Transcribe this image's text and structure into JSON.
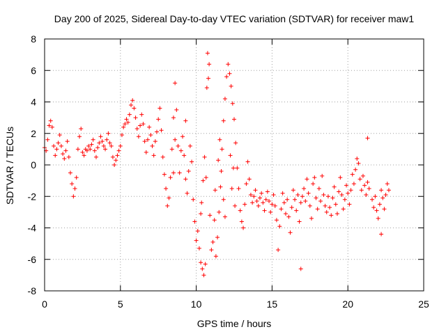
{
  "chart_data": {
    "type": "scatter",
    "title": "Day 200 of 2025, Sidereal Day-to-day VTEC variation (SDTVAR) for receiver maw1",
    "xlabel": "GPS time / hours",
    "ylabel": "SDTVAR / TECUs",
    "xlim": [
      0,
      25
    ],
    "ylim": [
      -8,
      8
    ],
    "xticks": [
      0,
      5,
      10,
      15,
      20,
      25
    ],
    "yticks": [
      -8,
      -6,
      -4,
      -2,
      0,
      2,
      4,
      6,
      8
    ],
    "grid": true,
    "marker": "+",
    "series": [
      {
        "name": "SDTVAR",
        "color": "#ff0000",
        "points": [
          [
            0.0,
            1.1
          ],
          [
            0.1,
            0.9
          ],
          [
            0.2,
            1.6
          ],
          [
            0.3,
            2.5
          ],
          [
            0.4,
            2.8
          ],
          [
            0.5,
            2.4
          ],
          [
            0.6,
            1.2
          ],
          [
            0.7,
            0.6
          ],
          [
            0.8,
            1.0
          ],
          [
            0.9,
            1.4
          ],
          [
            1.0,
            1.9
          ],
          [
            1.1,
            1.2
          ],
          [
            1.2,
            0.7
          ],
          [
            1.3,
            0.4
          ],
          [
            1.4,
            0.9
          ],
          [
            1.5,
            1.5
          ],
          [
            1.6,
            0.5
          ],
          [
            1.7,
            -0.5
          ],
          [
            1.8,
            -1.2
          ],
          [
            1.9,
            -2.0
          ],
          [
            2.0,
            -1.5
          ],
          [
            2.1,
            -0.8
          ],
          [
            2.2,
            1.0
          ],
          [
            2.3,
            1.8
          ],
          [
            2.4,
            2.3
          ],
          [
            2.5,
            0.8
          ],
          [
            2.6,
            0.6
          ],
          [
            2.7,
            1.0
          ],
          [
            2.8,
            0.9
          ],
          [
            2.9,
            1.2
          ],
          [
            3.0,
            1.0
          ],
          [
            3.1,
            1.3
          ],
          [
            3.2,
            1.6
          ],
          [
            3.3,
            0.9
          ],
          [
            3.4,
            0.5
          ],
          [
            3.5,
            1.1
          ],
          [
            3.6,
            1.4
          ],
          [
            3.7,
            1.8
          ],
          [
            3.8,
            1.5
          ],
          [
            3.9,
            1.2
          ],
          [
            4.0,
            1.0
          ],
          [
            4.1,
            1.6
          ],
          [
            4.2,
            2.0
          ],
          [
            4.3,
            1.4
          ],
          [
            4.4,
            1.2
          ],
          [
            4.5,
            0.5
          ],
          [
            4.6,
            0.0
          ],
          [
            4.7,
            0.3
          ],
          [
            4.8,
            0.6
          ],
          [
            4.9,
            0.9
          ],
          [
            5.0,
            1.2
          ],
          [
            5.1,
            1.9
          ],
          [
            5.2,
            2.4
          ],
          [
            5.3,
            2.6
          ],
          [
            5.4,
            2.9
          ],
          [
            5.5,
            2.7
          ],
          [
            5.6,
            3.2
          ],
          [
            5.7,
            3.8
          ],
          [
            5.8,
            4.1
          ],
          [
            5.9,
            3.6
          ],
          [
            6.0,
            3.0
          ],
          [
            6.1,
            2.3
          ],
          [
            6.2,
            1.8
          ],
          [
            6.3,
            2.5
          ],
          [
            6.4,
            3.2
          ],
          [
            6.5,
            2.6
          ],
          [
            6.6,
            1.5
          ],
          [
            6.7,
            0.8
          ],
          [
            6.8,
            1.6
          ],
          [
            6.9,
            2.4
          ],
          [
            7.0,
            1.9
          ],
          [
            7.1,
            1.2
          ],
          [
            7.2,
            0.6
          ],
          [
            7.3,
            1.5
          ],
          [
            7.4,
            2.1
          ],
          [
            7.5,
            2.9
          ],
          [
            7.6,
            3.6
          ],
          [
            7.7,
            2.2
          ],
          [
            7.8,
            0.5
          ],
          [
            7.9,
            -0.6
          ],
          [
            8.0,
            -1.5
          ],
          [
            8.1,
            -2.6
          ],
          [
            8.2,
            -2.1
          ],
          [
            8.3,
            -0.8
          ],
          [
            8.4,
            1.0
          ],
          [
            8.5,
            3.0
          ],
          [
            8.6,
            5.2
          ],
          [
            8.7,
            3.5
          ],
          [
            8.8,
            1.2
          ],
          [
            8.9,
            -0.5
          ],
          [
            9.0,
            0.9
          ],
          [
            9.1,
            1.8
          ],
          [
            9.2,
            0.6
          ],
          [
            9.3,
            -0.9
          ],
          [
            9.4,
            -1.8
          ],
          [
            9.5,
            -0.4
          ],
          [
            9.6,
            1.2
          ],
          [
            9.7,
            0.2
          ],
          [
            9.8,
            -2.2
          ],
          [
            9.9,
            -3.6
          ],
          [
            10.0,
            -4.8
          ],
          [
            10.1,
            -4.2
          ],
          [
            10.2,
            -5.3
          ],
          [
            10.3,
            -6.2
          ],
          [
            10.4,
            -6.6
          ],
          [
            10.5,
            -7.0
          ],
          [
            10.6,
            -6.3
          ],
          [
            10.7,
            4.9
          ],
          [
            10.75,
            7.1
          ],
          [
            10.8,
            5.5
          ],
          [
            10.9,
            -3.2
          ],
          [
            11.0,
            -5.4
          ],
          [
            11.1,
            -4.9
          ],
          [
            11.2,
            -3.5
          ],
          [
            11.3,
            -5.8
          ],
          [
            11.4,
            -4.6
          ],
          [
            11.5,
            -3.0
          ],
          [
            11.6,
            -1.4
          ],
          [
            11.7,
            1.0
          ],
          [
            11.8,
            2.8
          ],
          [
            11.9,
            4.2
          ],
          [
            12.0,
            5.6
          ],
          [
            12.1,
            6.4
          ],
          [
            12.2,
            5.8
          ],
          [
            12.3,
            5.0
          ],
          [
            12.4,
            3.9
          ],
          [
            12.5,
            2.9
          ],
          [
            12.6,
            1.4
          ],
          [
            12.7,
            -0.2
          ],
          [
            12.8,
            -1.5
          ],
          [
            12.9,
            -2.9
          ],
          [
            13.0,
            -3.6
          ],
          [
            13.1,
            -4.0
          ],
          [
            13.2,
            -2.5
          ],
          [
            13.3,
            -1.2
          ],
          [
            13.4,
            0.2
          ],
          [
            13.5,
            -0.9
          ],
          [
            13.6,
            -1.9
          ],
          [
            13.7,
            -2.4
          ],
          [
            13.8,
            -2.0
          ],
          [
            13.9,
            -1.6
          ],
          [
            14.0,
            -2.3
          ],
          [
            14.1,
            -2.6
          ],
          [
            14.2,
            -2.1
          ],
          [
            14.3,
            -1.8
          ],
          [
            14.4,
            -2.4
          ],
          [
            14.5,
            -2.9
          ],
          [
            14.6,
            -2.2
          ],
          [
            14.7,
            -1.7
          ],
          [
            14.8,
            -2.3
          ],
          [
            14.9,
            -3.0
          ],
          [
            15.0,
            -2.5
          ],
          [
            15.1,
            -1.9
          ],
          [
            15.2,
            -2.6
          ],
          [
            15.3,
            -3.5
          ],
          [
            15.4,
            -5.4
          ],
          [
            15.5,
            -3.9
          ],
          [
            15.6,
            -2.8
          ],
          [
            15.7,
            -1.8
          ],
          [
            15.8,
            -2.4
          ],
          [
            15.9,
            -3.1
          ],
          [
            16.0,
            -2.2
          ],
          [
            16.1,
            -3.3
          ],
          [
            16.2,
            -4.3
          ],
          [
            16.3,
            -2.7
          ],
          [
            16.4,
            -1.6
          ],
          [
            16.5,
            -2.2
          ],
          [
            16.6,
            -2.9
          ],
          [
            16.7,
            -1.9
          ],
          [
            16.8,
            -3.6
          ],
          [
            16.9,
            -2.4
          ],
          [
            17.0,
            -2.0
          ],
          [
            17.1,
            -1.5
          ],
          [
            17.2,
            -2.3
          ],
          [
            17.3,
            -0.9
          ],
          [
            17.4,
            -1.8
          ],
          [
            17.5,
            -2.6
          ],
          [
            17.6,
            -3.4
          ],
          [
            17.7,
            -1.2
          ],
          [
            17.8,
            -0.8
          ],
          [
            17.9,
            -2.1
          ],
          [
            18.0,
            -2.8
          ],
          [
            18.1,
            -1.5
          ],
          [
            18.2,
            -2.3
          ],
          [
            18.3,
            -0.7
          ],
          [
            18.4,
            -1.9
          ],
          [
            18.5,
            -2.6
          ],
          [
            18.6,
            -3.0
          ],
          [
            18.7,
            -2.0
          ],
          [
            18.8,
            -2.7
          ],
          [
            18.9,
            -3.2
          ],
          [
            19.0,
            -2.1
          ],
          [
            19.1,
            -1.4
          ],
          [
            19.2,
            -2.5
          ],
          [
            19.3,
            -3.1
          ],
          [
            19.4,
            -1.7
          ],
          [
            19.5,
            -0.8
          ],
          [
            19.6,
            -1.9
          ],
          [
            19.7,
            -2.8
          ],
          [
            19.8,
            -2.2
          ],
          [
            19.9,
            -1.3
          ],
          [
            20.0,
            -1.8
          ],
          [
            20.1,
            -2.5
          ],
          [
            20.2,
            -1.6
          ],
          [
            20.3,
            -0.6
          ],
          [
            20.4,
            -1.2
          ],
          [
            20.5,
            -0.3
          ],
          [
            20.6,
            0.4
          ],
          [
            20.7,
            0.1
          ],
          [
            20.8,
            -0.9
          ],
          [
            20.9,
            -1.6
          ],
          [
            21.0,
            -0.7
          ],
          [
            21.1,
            -1.3
          ],
          [
            21.2,
            -1.9
          ],
          [
            21.3,
            -1.1
          ],
          [
            21.4,
            -1.5
          ],
          [
            21.6,
            -2.2
          ],
          [
            21.7,
            -2.7
          ],
          [
            21.8,
            -2.0
          ],
          [
            21.9,
            -2.9
          ],
          [
            22.0,
            -3.4
          ],
          [
            22.1,
            -2.5
          ],
          [
            22.2,
            -1.6
          ],
          [
            22.3,
            -2.1
          ],
          [
            22.4,
            -2.8
          ],
          [
            22.5,
            -1.9
          ],
          [
            22.6,
            -1.2
          ],
          [
            22.7,
            -1.6
          ],
          [
            10.3,
            -3.1
          ],
          [
            10.35,
            -2.4
          ],
          [
            10.45,
            -1.0
          ],
          [
            10.55,
            0.5
          ],
          [
            10.65,
            -0.8
          ],
          [
            11.25,
            -1.6
          ],
          [
            11.45,
            0.3
          ],
          [
            11.55,
            1.6
          ],
          [
            11.65,
            -0.4
          ],
          [
            12.25,
            0.6
          ],
          [
            12.35,
            -1.5
          ],
          [
            12.45,
            -0.2
          ],
          [
            12.55,
            -2.6
          ],
          [
            11.8,
            -2.2
          ],
          [
            11.9,
            -3.3
          ],
          [
            16.9,
            -6.6
          ],
          [
            22.2,
            -4.4
          ],
          [
            21.3,
            1.7
          ],
          [
            10.85,
            6.4
          ],
          [
            8.6,
            1.6
          ],
          [
            8.5,
            -0.5
          ],
          [
            9.3,
            2.8
          ]
        ]
      }
    ]
  }
}
